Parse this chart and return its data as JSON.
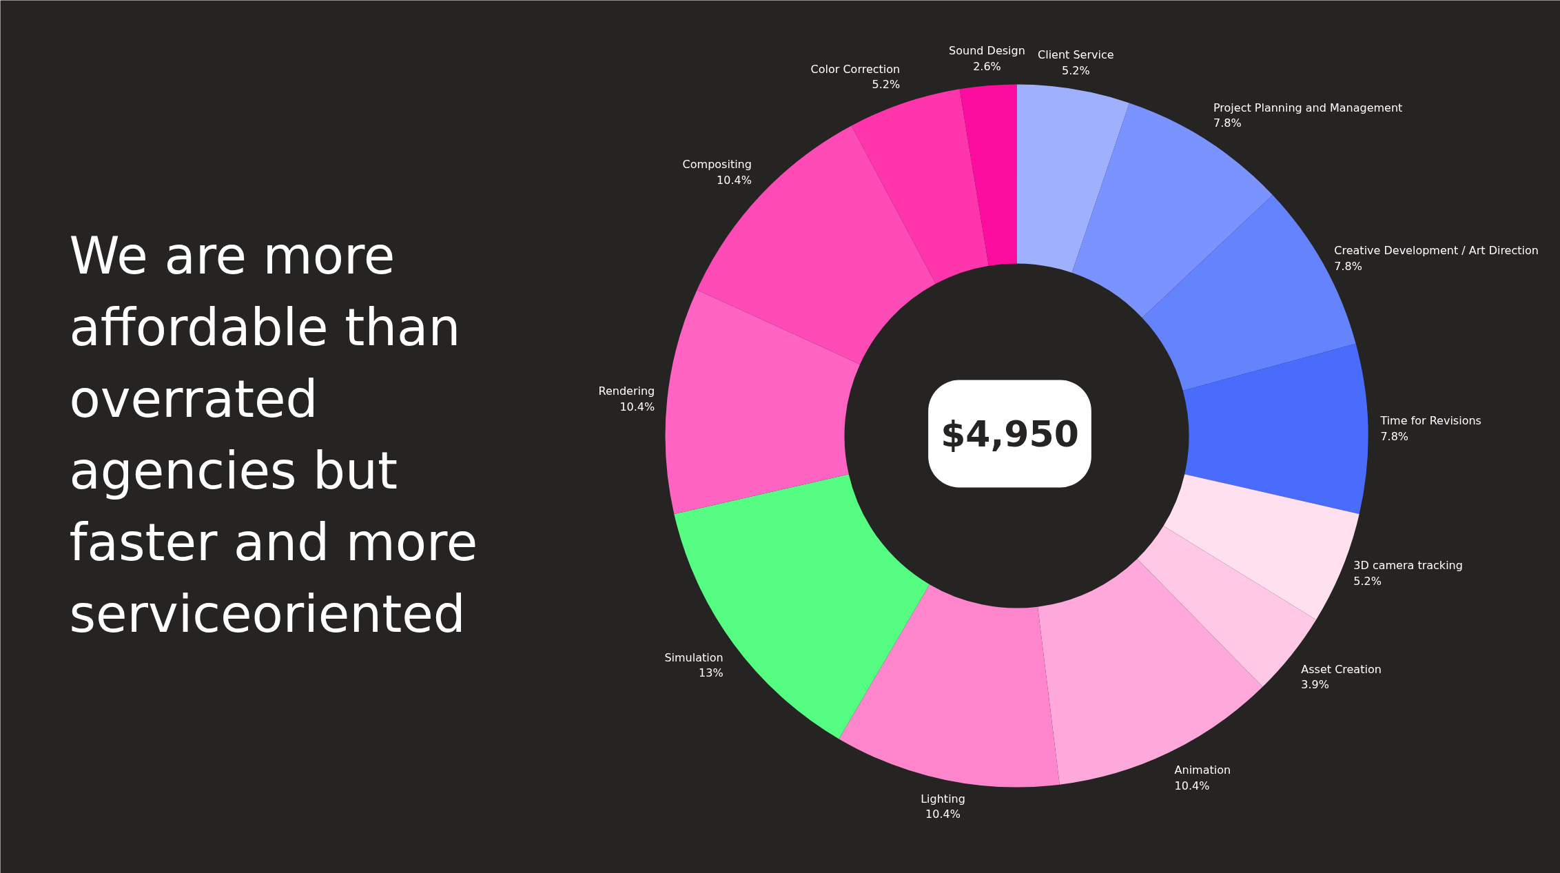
{
  "chart_data": {
    "type": "donut",
    "title": "We are more affordable than overrated agencies but faster and more serviceoriented",
    "categories": [
      "Client Service",
      "Project Planning and Management",
      "Creative Development / Art Direction",
      "Time for Revisions",
      "3D camera tracking",
      "Asset Creation",
      "Animation",
      "Lighting",
      "Simulation",
      "Rendering",
      "Compositing",
      "Color Correction",
      "Sound Design"
    ],
    "values": [
      5.2,
      7.8,
      7.8,
      7.8,
      5.2,
      3.9,
      10.4,
      10.4,
      13,
      10.4,
      10.4,
      5.2,
      2.6
    ],
    "colors": [
      "#9fb0ff",
      "#7b93fe",
      "#6583fd",
      "#4a6cfc",
      "#ffe0ef",
      "#ffc9e6",
      "#ffa8dc",
      "#ff86cd",
      "#55fd82",
      "#ff64c2",
      "#ff4bb6",
      "#fe35ab",
      "#fd0ca0"
    ],
    "value_labels": [
      "5.2%",
      "7.8%",
      "7.8%",
      "7.8%",
      "5.2%",
      "3.9%",
      "10.4%",
      "10.4%",
      "13%",
      "10.4%",
      "10.4%",
      "5.2%",
      "2.6%"
    ],
    "annotations": [
      "$4,950"
    ]
  }
}
